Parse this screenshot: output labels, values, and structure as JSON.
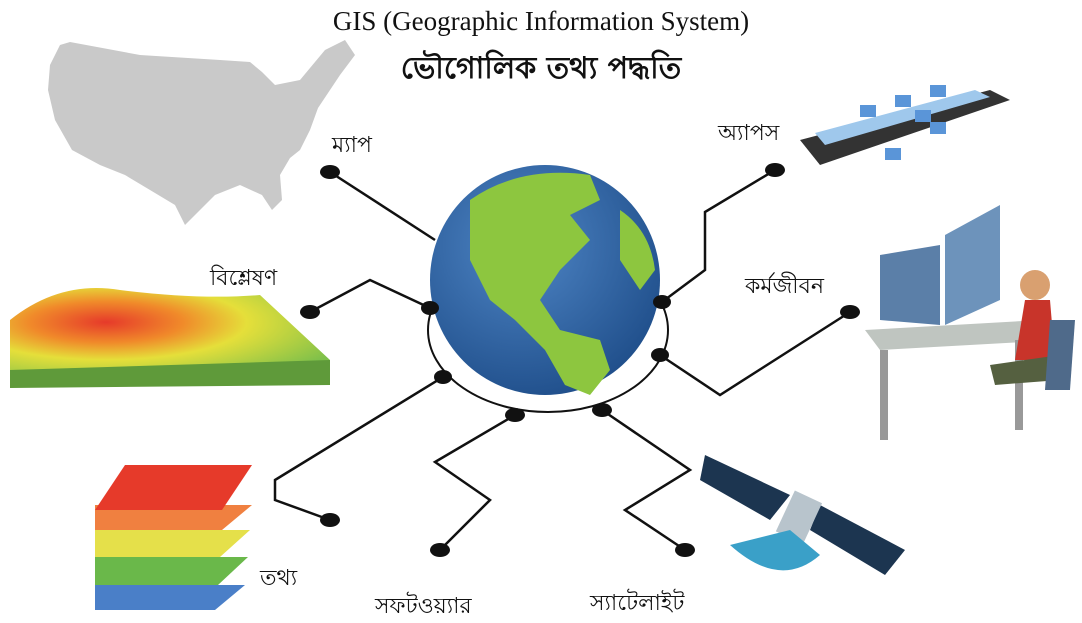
{
  "title": "GIS (Geographic Information System)",
  "subtitle": "ভৌগোলিক তথ্য পদ্ধতি",
  "nodes": [
    {
      "label": "ম্যাপ"
    },
    {
      "label": "অ্যাপস"
    },
    {
      "label": "বিশ্লেষণ"
    },
    {
      "label": "কর্মজীবন"
    },
    {
      "label": "তথ্য"
    },
    {
      "label": "সফটওয়্যার"
    },
    {
      "label": "স্যাটেলাইট"
    }
  ]
}
